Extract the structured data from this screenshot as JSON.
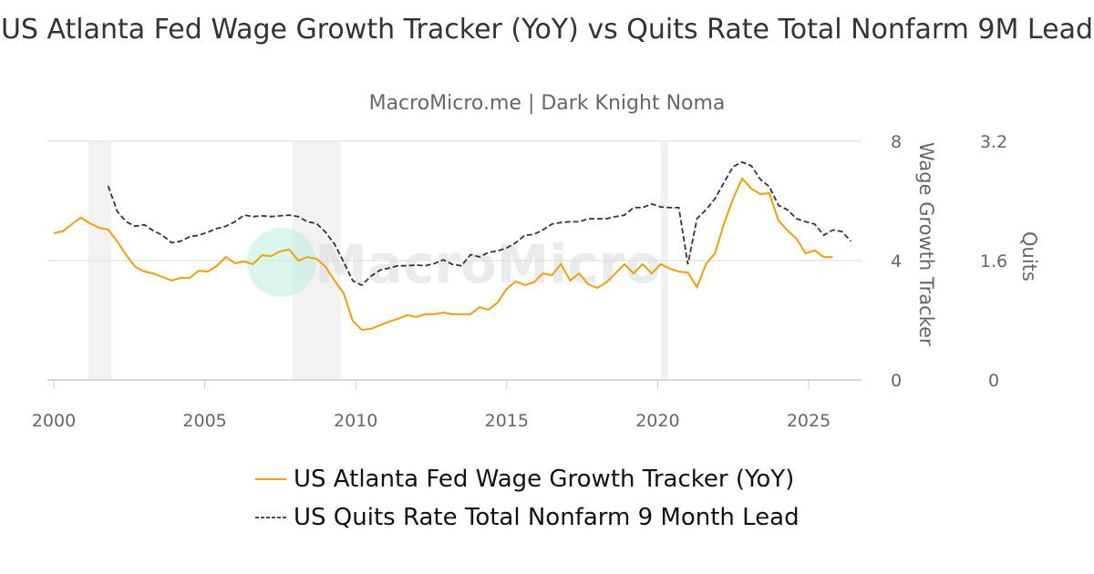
{
  "title": "US Atlanta Fed Wage Growth Tracker (YoY) vs Quits Rate Total Nonfarm 9M Lead",
  "subtitle": "MacroMicro.me | Dark Knight Noma",
  "watermark": "MacroMicro",
  "chart_data": {
    "type": "line",
    "title": "US Atlanta Fed Wage Growth Tracker (YoY) vs Quits Rate Total Nonfarm 9M Lead",
    "xlim": [
      2000,
      2026.7
    ],
    "x_ticks": [
      "2000",
      "2005",
      "2010",
      "2015",
      "2020",
      "2025"
    ],
    "y_left": {
      "label": "Wage Growth Tracker",
      "range": [
        0,
        8
      ],
      "ticks": [
        "0",
        "4",
        "8"
      ]
    },
    "y_right": {
      "label": "Quits",
      "range": [
        0,
        3.2
      ],
      "ticks": [
        "0",
        "1.6",
        "3.2"
      ]
    },
    "grid": true,
    "legend": "bottom",
    "recessions": [
      [
        2001.15,
        2001.9
      ],
      [
        2007.9,
        2009.5
      ],
      [
        2020.1,
        2020.35
      ]
    ],
    "series": [
      {
        "name": "US Atlanta Fed Wage Growth Tracker (YoY)",
        "axis": "left",
        "color": "#f2a000",
        "style": "solid",
        "x_start": 2000.0,
        "x_step": 0.3,
        "values": [
          4.92,
          4.98,
          5.22,
          5.44,
          5.25,
          5.1,
          5.04,
          4.64,
          4.18,
          3.79,
          3.63,
          3.57,
          3.45,
          3.33,
          3.42,
          3.42,
          3.66,
          3.63,
          3.82,
          4.12,
          3.91,
          3.97,
          3.88,
          4.18,
          4.15,
          4.31,
          4.37,
          4.0,
          4.12,
          4.06,
          3.79,
          3.33,
          2.9,
          1.98,
          1.68,
          1.71,
          1.83,
          1.95,
          2.05,
          2.17,
          2.11,
          2.2,
          2.2,
          2.26,
          2.2,
          2.2,
          2.2,
          2.44,
          2.35,
          2.6,
          3.05,
          3.3,
          3.18,
          3.27,
          3.57,
          3.51,
          3.88,
          3.33,
          3.57,
          3.21,
          3.08,
          3.27,
          3.57,
          3.88,
          3.57,
          3.88,
          3.57,
          3.88,
          3.73,
          3.63,
          3.6,
          3.11,
          3.88,
          4.24,
          5.25,
          6.08,
          6.75,
          6.41,
          6.23,
          6.26,
          5.34,
          5.01,
          4.73,
          4.24,
          4.34,
          4.12,
          4.12
        ]
      },
      {
        "name": "US Quits Rate Total Nonfarm 9 Month Lead",
        "axis": "right",
        "color": "#333340",
        "style": "dashed",
        "x_start": 2001.8,
        "x_step": 0.3,
        "values": [
          2.6,
          2.26,
          2.12,
          2.06,
          2.08,
          2.0,
          1.94,
          1.84,
          1.86,
          1.92,
          1.94,
          1.98,
          2.03,
          2.06,
          2.12,
          2.21,
          2.19,
          2.2,
          2.19,
          2.2,
          2.21,
          2.19,
          2.12,
          2.1,
          1.98,
          1.82,
          1.58,
          1.33,
          1.27,
          1.39,
          1.47,
          1.5,
          1.53,
          1.53,
          1.54,
          1.53,
          1.56,
          1.61,
          1.55,
          1.53,
          1.68,
          1.65,
          1.71,
          1.73,
          1.77,
          1.84,
          1.94,
          1.95,
          2.01,
          2.09,
          2.11,
          2.12,
          2.12,
          2.16,
          2.16,
          2.16,
          2.19,
          2.21,
          2.31,
          2.31,
          2.36,
          2.32,
          2.31,
          2.31,
          1.55,
          2.16,
          2.28,
          2.43,
          2.65,
          2.86,
          2.92,
          2.87,
          2.69,
          2.59,
          2.34,
          2.28,
          2.16,
          2.12,
          2.09,
          1.94,
          2.01,
          1.99,
          1.86
        ]
      }
    ]
  }
}
